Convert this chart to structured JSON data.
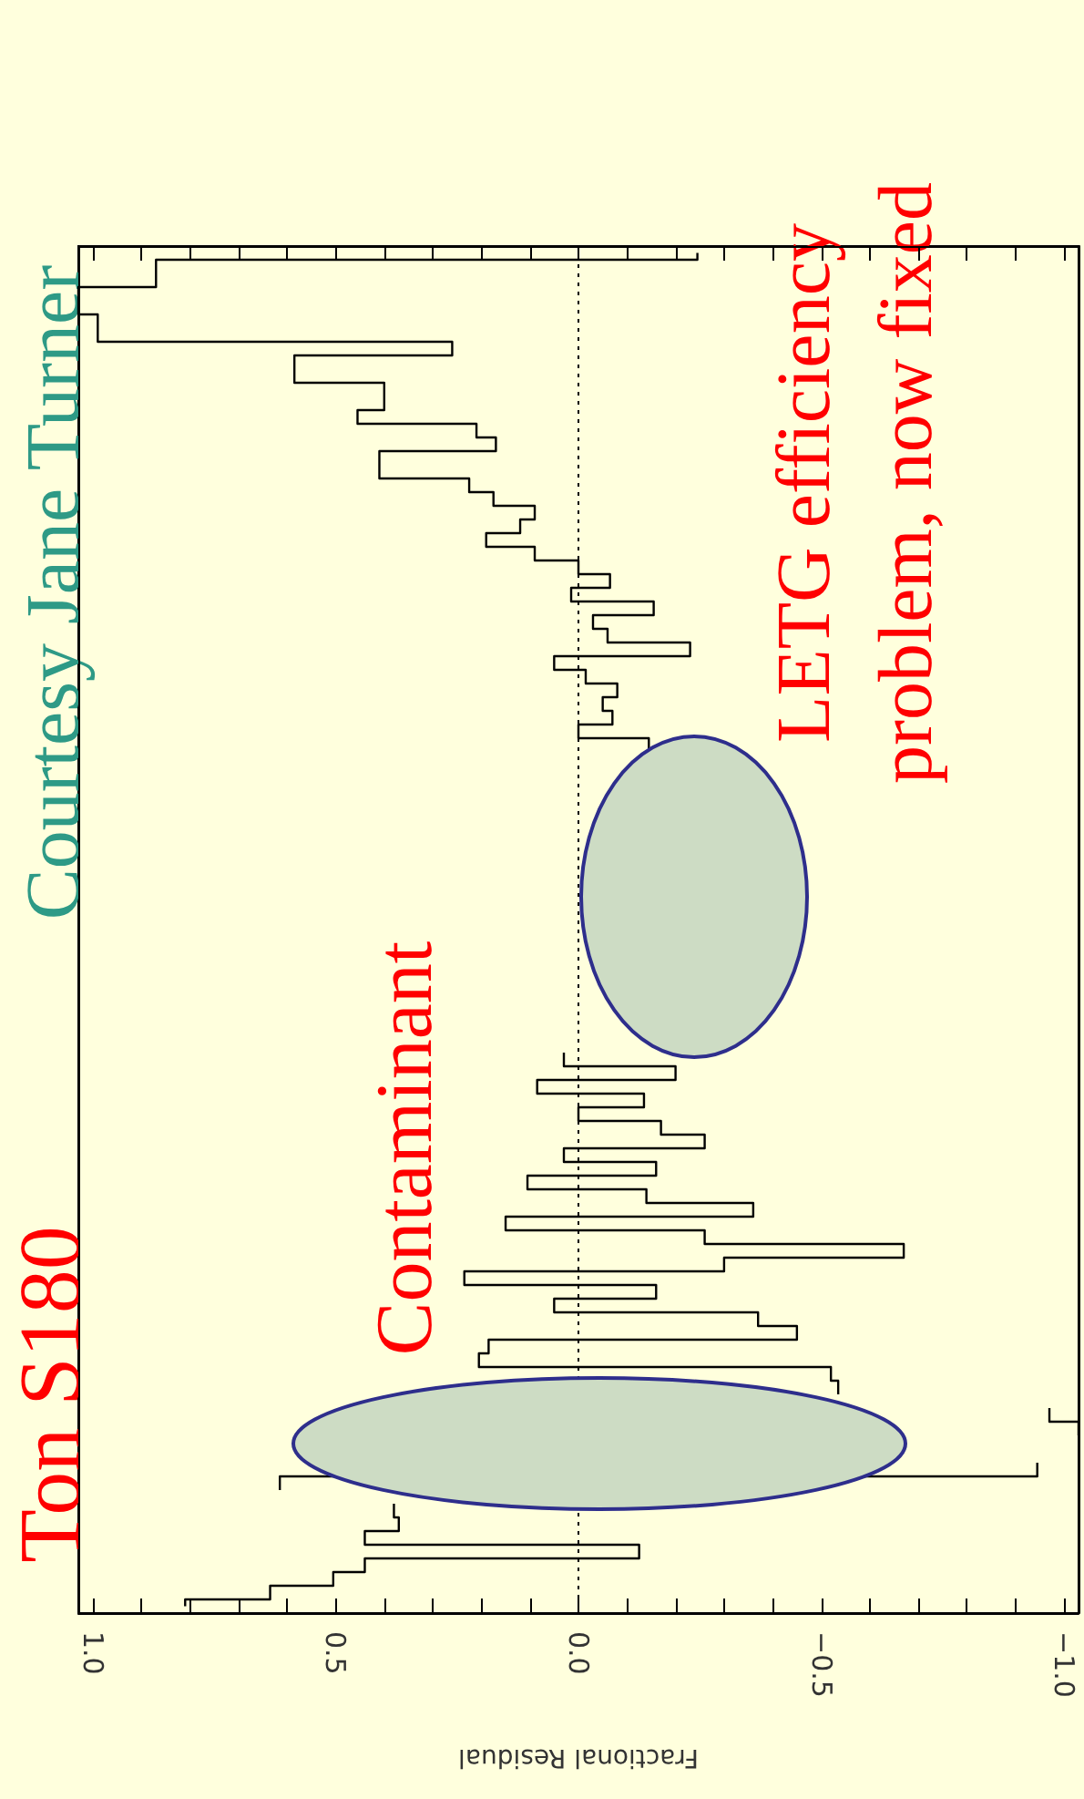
{
  "chart_data": {
    "type": "step",
    "orientation": "horizontal",
    "title": "Ton S180",
    "xlabel": "Fractional Residual",
    "annotations": [
      "Contaminant",
      "Courtesy Jane Turner",
      "LETG efficiency\nproblem, now fixed"
    ],
    "xlim": [
      1.03,
      -1.03
    ],
    "xticks": [
      {
        "value": 1,
        "label": "1.0"
      },
      {
        "value": 0.9,
        "label": null
      },
      {
        "value": 0.8,
        "label": null
      },
      {
        "value": 0.7,
        "label": null
      },
      {
        "value": 0.6,
        "label": null
      },
      {
        "value": 0.5,
        "label": "0.5"
      },
      {
        "value": 0.4,
        "label": null
      },
      {
        "value": 0.3,
        "label": null
      },
      {
        "value": 0.2,
        "label": null
      },
      {
        "value": 0.1,
        "label": null
      },
      {
        "value": 0,
        "label": "0.0"
      },
      {
        "value": -0.1,
        "label": null
      },
      {
        "value": -0.2,
        "label": null
      },
      {
        "value": -0.3,
        "label": null
      },
      {
        "value": -0.4,
        "label": null
      },
      {
        "value": -0.5,
        "label": "−0.5"
      },
      {
        "value": -0.6,
        "label": null
      },
      {
        "value": -0.7,
        "label": null
      },
      {
        "value": -0.8,
        "label": null
      },
      {
        "value": -0.9,
        "label": null
      },
      {
        "value": -1,
        "label": "−1.0"
      }
    ],
    "ref_lines": [
      {
        "axis": "x",
        "value": 0,
        "line_style": "dotted",
        "color": "#000000"
      }
    ],
    "color": "#000000",
    "categories": [
      null,
      null,
      null,
      null,
      null,
      null,
      null,
      null,
      null,
      null,
      null,
      null,
      null,
      null,
      null,
      null,
      null,
      null,
      null,
      null,
      null,
      null,
      null,
      null,
      null,
      null,
      null,
      null,
      null,
      null,
      null,
      null,
      null,
      null,
      null,
      null,
      null,
      null,
      null,
      null,
      null,
      null,
      null,
      null,
      null,
      null,
      null,
      null,
      null,
      null,
      null,
      null,
      null,
      null,
      null,
      null,
      null,
      null,
      null,
      null,
      null,
      null,
      null,
      null,
      null,
      null,
      null,
      null,
      null,
      null,
      null,
      null,
      null,
      null,
      null,
      null,
      null,
      null,
      null,
      null,
      null,
      null,
      null,
      null,
      null,
      null,
      null,
      null,
      null,
      null,
      null,
      null,
      null,
      null,
      null,
      null,
      null,
      null,
      null,
      null
    ],
    "values": [
      -0.245,
      0.87,
      0.87,
      1.03,
      1.03,
      0.99,
      0.99,
      0.26,
      0.585,
      0.585,
      0.4,
      0.4,
      0.455,
      0.21,
      0.17,
      0.41,
      0.41,
      0.225,
      0.175,
      0.09,
      0.12,
      0.19,
      0.09,
      0,
      -0.065,
      0.015,
      -0.155,
      -0.03,
      -0.06,
      -0.23,
      0.05,
      -0.015,
      -0.08,
      -0.05,
      -0.07,
      0,
      -0.145,
      null,
      null,
      null,
      null,
      null,
      null,
      null,
      null,
      null,
      null,
      null,
      null,
      null,
      null,
      null,
      null,
      null,
      null,
      null,
      null,
      null,
      null,
      0.03,
      -0.2,
      0.085,
      -0.135,
      0,
      -0.17,
      -0.26,
      0.03,
      -0.16,
      0.105,
      -0.14,
      -0.36,
      0.15,
      -0.26,
      -0.67,
      -0.3,
      0.235,
      -0.16,
      0.05,
      -0.37,
      -0.45,
      0.185,
      0.205,
      -0.52,
      -0.535,
      null,
      -0.97,
      -1.03,
      null,
      null,
      -0.945,
      0.615,
      null,
      0.38,
      0.37,
      0.44,
      -0.125,
      0.44,
      0.505,
      0.635,
      0.81
    ]
  }
}
